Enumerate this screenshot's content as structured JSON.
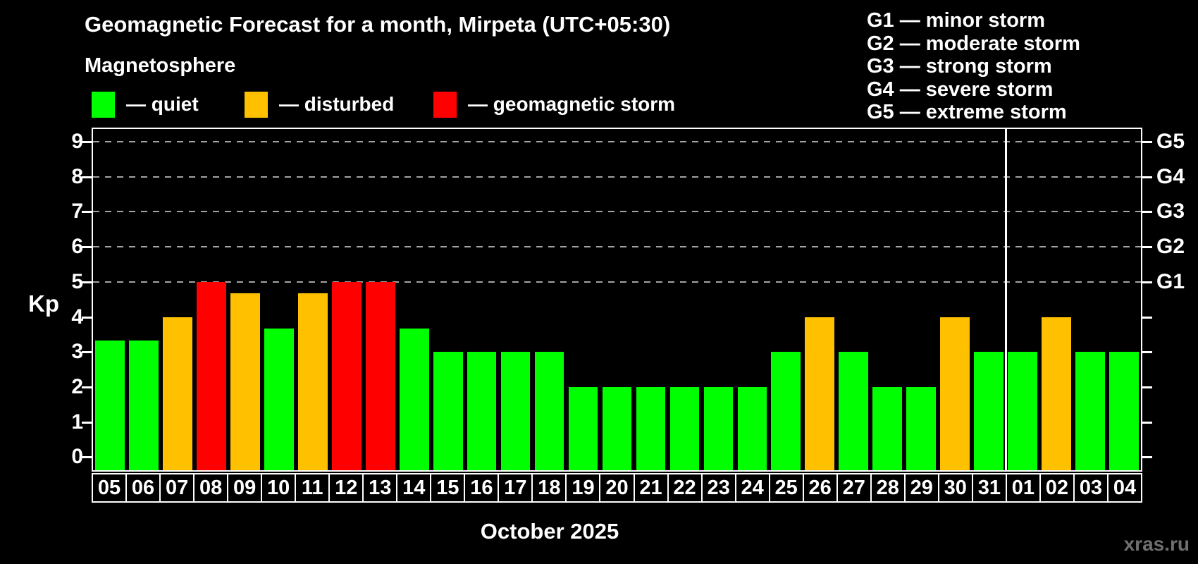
{
  "title": "Geomagnetic Forecast for a month, Mirpeta (UTC+05:30)",
  "subtitle": "Magnetosphere",
  "legend": {
    "items": [
      {
        "label": "— quiet",
        "color": "#00ff00"
      },
      {
        "label": "— disturbed",
        "color": "#ffc000"
      },
      {
        "label": "— geomagnetic storm",
        "color": "#ff0000"
      }
    ]
  },
  "storm_scale_legend": [
    "G1 — minor storm",
    "G2 — moderate storm",
    "G3 — strong storm",
    "G4 — severe storm",
    "G5 — extreme storm"
  ],
  "axes": {
    "y_left_label": "Kp",
    "y_left_ticks": [
      "0",
      "1",
      "2",
      "3",
      "4",
      "5",
      "6",
      "7",
      "8",
      "9"
    ],
    "y_right_ticks": [
      "G1",
      "G2",
      "G3",
      "G4",
      "G5"
    ],
    "x_label": "October 2025"
  },
  "watermark": "xras.ru",
  "chart_data": {
    "type": "bar",
    "title": "Geomagnetic Forecast for a month, Mirpeta (UTC+05:30)",
    "ylabel": "Kp",
    "xlabel": "October 2025",
    "ylim": [
      0,
      9
    ],
    "gridlines_at_kp": [
      5,
      6,
      7,
      8,
      9
    ],
    "right_axis_levels": {
      "G1": 5,
      "G2": 6,
      "G3": 7,
      "G4": 8,
      "G5": 9
    },
    "month_divider_after_date": "31",
    "status_colors": {
      "quiet": "#00ff00",
      "disturbed": "#ffc000",
      "storm": "#ff0000"
    },
    "days": [
      {
        "date": "05",
        "kp": 3.33,
        "status": "quiet"
      },
      {
        "date": "06",
        "kp": 3.33,
        "status": "quiet"
      },
      {
        "date": "07",
        "kp": 4,
        "status": "disturbed"
      },
      {
        "date": "08",
        "kp": 5,
        "status": "storm"
      },
      {
        "date": "09",
        "kp": 4.67,
        "status": "disturbed"
      },
      {
        "date": "10",
        "kp": 3.67,
        "status": "quiet"
      },
      {
        "date": "11",
        "kp": 4.67,
        "status": "disturbed"
      },
      {
        "date": "12",
        "kp": 5,
        "status": "storm"
      },
      {
        "date": "13",
        "kp": 5,
        "status": "storm"
      },
      {
        "date": "14",
        "kp": 3.67,
        "status": "quiet"
      },
      {
        "date": "15",
        "kp": 3,
        "status": "quiet"
      },
      {
        "date": "16",
        "kp": 3,
        "status": "quiet"
      },
      {
        "date": "17",
        "kp": 3,
        "status": "quiet"
      },
      {
        "date": "18",
        "kp": 3,
        "status": "quiet"
      },
      {
        "date": "19",
        "kp": 2,
        "status": "quiet"
      },
      {
        "date": "20",
        "kp": 2,
        "status": "quiet"
      },
      {
        "date": "21",
        "kp": 2,
        "status": "quiet"
      },
      {
        "date": "22",
        "kp": 2,
        "status": "quiet"
      },
      {
        "date": "23",
        "kp": 2,
        "status": "quiet"
      },
      {
        "date": "24",
        "kp": 2,
        "status": "quiet"
      },
      {
        "date": "25",
        "kp": 3,
        "status": "quiet"
      },
      {
        "date": "26",
        "kp": 4,
        "status": "disturbed"
      },
      {
        "date": "27",
        "kp": 3,
        "status": "quiet"
      },
      {
        "date": "28",
        "kp": 2,
        "status": "quiet"
      },
      {
        "date": "29",
        "kp": 2,
        "status": "quiet"
      },
      {
        "date": "30",
        "kp": 4,
        "status": "disturbed"
      },
      {
        "date": "31",
        "kp": 3,
        "status": "quiet"
      },
      {
        "date": "01",
        "kp": 3,
        "status": "quiet"
      },
      {
        "date": "02",
        "kp": 4,
        "status": "disturbed"
      },
      {
        "date": "03",
        "kp": 3,
        "status": "quiet"
      },
      {
        "date": "04",
        "kp": 3,
        "status": "quiet"
      }
    ]
  }
}
